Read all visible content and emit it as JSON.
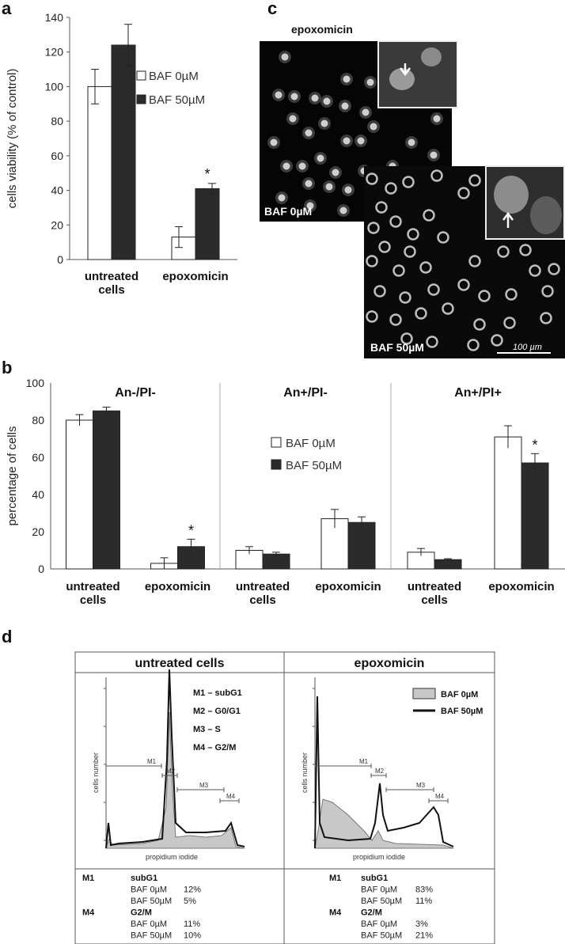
{
  "panels": {
    "a": {
      "letter": "a"
    },
    "b": {
      "letter": "b"
    },
    "c": {
      "letter": "c"
    },
    "d": {
      "letter": "d"
    }
  },
  "colors": {
    "open_bar": "#ffffff",
    "filled_bar": "#2b2b2b",
    "axis": "#555555",
    "grey_fill": "#c8c8c8"
  },
  "chart_data": [
    {
      "id": "a",
      "type": "bar",
      "ylabel": "cells viability (% of control)",
      "ylim": [
        0,
        140
      ],
      "yticks": [
        0,
        20,
        40,
        60,
        80,
        100,
        120,
        140
      ],
      "categories": [
        "untreated\ncells",
        "epoxomicin"
      ],
      "category_lines": [
        [
          "untreated",
          "cells"
        ],
        [
          "epoxomicin"
        ]
      ],
      "series": [
        {
          "name": "BAF 0µM",
          "values": [
            100,
            13
          ],
          "errors": [
            10,
            6
          ]
        },
        {
          "name": "BAF 50µM",
          "values": [
            124,
            41
          ],
          "errors": [
            12,
            3
          ]
        }
      ],
      "significance": [
        {
          "category": 1,
          "series": 1,
          "mark": "*"
        }
      ],
      "legend": "right"
    },
    {
      "id": "b",
      "type": "bar",
      "ylabel": "percentage of cells",
      "ylim": [
        0,
        100
      ],
      "yticks": [
        0,
        20,
        40,
        60,
        80,
        100
      ],
      "subplots": [
        {
          "title": "An-/PI-",
          "categories": [
            [
              "untreated",
              "cells"
            ],
            [
              "epoxomicin"
            ]
          ],
          "series": [
            {
              "values": [
                80,
                3
              ],
              "errors": [
                3,
                3
              ]
            },
            {
              "values": [
                85,
                12
              ],
              "errors": [
                2,
                4
              ]
            }
          ],
          "significance": [
            {
              "category": 1,
              "series": 1,
              "mark": "*"
            }
          ]
        },
        {
          "title": "An+/PI-",
          "categories": [
            [
              "untreated",
              "cells"
            ],
            [
              "epoxomicin"
            ]
          ],
          "series": [
            {
              "values": [
                10,
                27
              ],
              "errors": [
                2,
                5
              ]
            },
            {
              "values": [
                8,
                25
              ],
              "errors": [
                1,
                3
              ]
            }
          ],
          "significance": []
        },
        {
          "title": "An+/PI+",
          "categories": [
            [
              "untreated",
              "cells"
            ],
            [
              "epoxomicin"
            ]
          ],
          "series": [
            {
              "values": [
                9,
                71
              ],
              "errors": [
                2,
                6
              ]
            },
            {
              "values": [
                5,
                57
              ],
              "errors": [
                0.5,
                5
              ]
            }
          ],
          "significance": [
            {
              "category": 1,
              "series": 1,
              "mark": "*"
            }
          ]
        }
      ],
      "series_names": [
        "BAF 0µM",
        "BAF 50µM"
      ]
    }
  ],
  "micrographs": {
    "title": "epoxomicin",
    "top_label": "BAF 0µM",
    "bottom_label": "BAF 50µM",
    "scale_bar": "100 µm"
  },
  "flow": {
    "headers": [
      "untreated cells",
      "epoxomicin"
    ],
    "phase_legend": [
      "M1 – subG1",
      "M2 – G0/G1",
      "M3 – S",
      "M4 – G2/M"
    ],
    "legend": {
      "grey": "BAF 0µM",
      "black": "BAF 50µM"
    },
    "xlabel": "propidium iodide",
    "ylabel": "cells number",
    "markers": [
      "M1",
      "M2",
      "M3",
      "M4"
    ],
    "tables": [
      {
        "rows": [
          {
            "code": "M1",
            "phase": "subG1"
          },
          {
            "label": "BAF   0µM",
            "value": "12%"
          },
          {
            "label": "BAF 50µM",
            "value": "5%"
          },
          {
            "code": "M4",
            "phase": "G2/M"
          },
          {
            "label": "BAF   0µM",
            "value": "11%"
          },
          {
            "label": "BAF 50µM",
            "value": "10%"
          }
        ]
      },
      {
        "rows": [
          {
            "code": "M1",
            "phase": "subG1"
          },
          {
            "label": "BAF   0µM",
            "value": "83%"
          },
          {
            "label": "BAF 50µM",
            "value": "11%"
          },
          {
            "code": "M4",
            "phase": "G2/M"
          },
          {
            "label": "BAF   0µM",
            "value": "3%"
          },
          {
            "label": "BAF 50µM",
            "value": "21%"
          }
        ]
      }
    ]
  }
}
